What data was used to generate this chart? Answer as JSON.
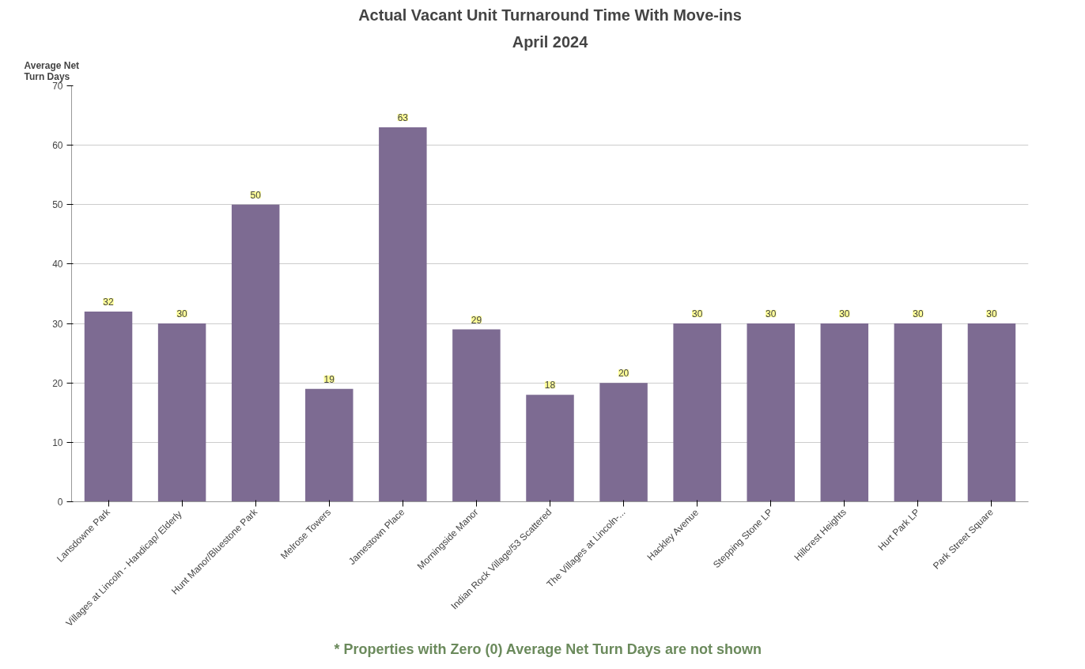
{
  "chart_data": {
    "type": "bar",
    "title": "Actual Vacant Unit Turnaround Time With Move-ins",
    "subtitle": "April 2024",
    "ylabel": "Average Net\nTurn Days",
    "categories": [
      "Lansdowne Park",
      "Villages at Lincoln  - Handicap/ Elderly",
      "Hunt Manor/Bluestone Park",
      "Melrose Towers",
      "Jamestown Place",
      "Morningside Manor",
      "Indian Rock Village/53 Scattered",
      "The Villages at Lincoln-...",
      "Hackley Avenue",
      "Stepping Stone LP",
      "Hillcrest Heights",
      "Hurt Park LP",
      "Park Street Square"
    ],
    "values": [
      32,
      30,
      50,
      19,
      63,
      29,
      18,
      20,
      30,
      30,
      30,
      30,
      30
    ],
    "color": "#7d6b92",
    "ylim": [
      0,
      70
    ],
    "yticks": [
      0,
      10,
      20,
      30,
      40,
      50,
      60,
      70
    ],
    "grid": "y",
    "data_labels": true,
    "annotations": [
      "* Properties with Zero (0) Average Net  Turn Days are not shown"
    ]
  }
}
